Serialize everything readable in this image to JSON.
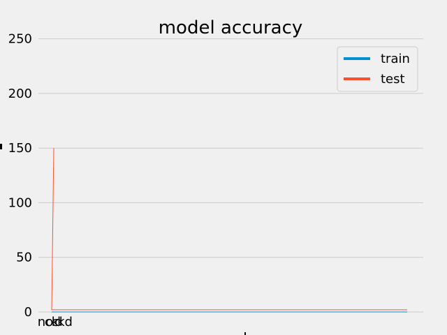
{
  "chart_data": {
    "type": "line",
    "title": "model accuracy",
    "xlabel": "",
    "ylabel": "",
    "categories": [
      "no",
      "ck",
      "c",
      "d",
      "kd"
    ],
    "series": [
      {
        "name": "train",
        "color": "#008fd5",
        "values": [
          0,
          0,
          0,
          0,
          0
        ]
      },
      {
        "name": "test",
        "color": "#fc4f30",
        "values": [
          150,
          2,
          2,
          2,
          2
        ]
      }
    ],
    "ylim": [
      0,
      260
    ],
    "yticks": [
      0,
      50,
      100,
      150,
      200,
      250
    ],
    "grid": true,
    "legend": "top-right"
  }
}
